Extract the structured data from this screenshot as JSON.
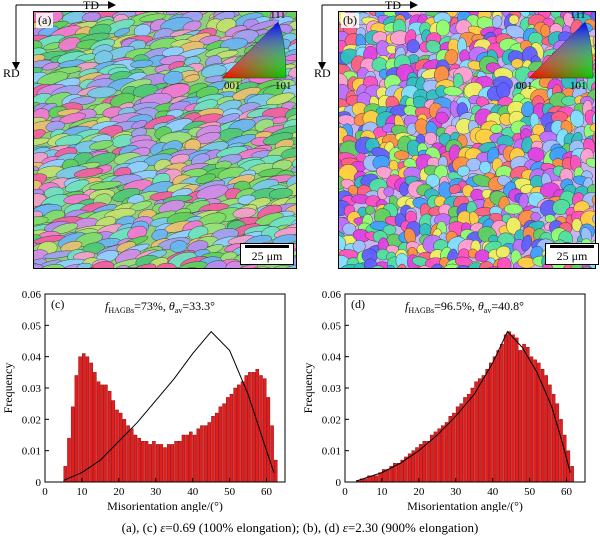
{
  "maps": [
    {
      "id": "a",
      "label": "(a)",
      "td": "TD",
      "rd": "RD",
      "scale": "25 μm",
      "ipf": {
        "top": "111",
        "left": "001",
        "right": "101"
      }
    },
    {
      "id": "b",
      "label": "(b)",
      "td": "TD",
      "rd": "RD",
      "scale": "25 μm",
      "ipf": {
        "top": "111",
        "left": "001",
        "right": "101"
      }
    }
  ],
  "chart_data": [
    {
      "type": "bar",
      "label": "(c)",
      "annotation": "f_HAGBs=73%, θav=33.3°",
      "annotation_parts": {
        "f": "f",
        "sub": "HAGBs",
        "mid": "=73%, ",
        "theta": "θ",
        "sub2": "av",
        "end": "=33.3°"
      },
      "xlabel": "Misorientation angle/(°)",
      "ylabel": "Frequency",
      "xlim": [
        0,
        65
      ],
      "ylim": [
        0,
        0.06
      ],
      "xticks": [
        "0",
        "10",
        "20",
        "30",
        "40",
        "50",
        "60"
      ],
      "yticks": [
        "0",
        "0.01",
        "0.02",
        "0.03",
        "0.04",
        "0.05",
        "0.06"
      ],
      "bar_color": "#e41e1e",
      "bin_start": 5,
      "bin_width": 1,
      "values": [
        0.005,
        0.014,
        0.024,
        0.034,
        0.04,
        0.041,
        0.04,
        0.038,
        0.035,
        0.032,
        0.031,
        0.031,
        0.029,
        0.026,
        0.023,
        0.022,
        0.02,
        0.018,
        0.017,
        0.015,
        0.014,
        0.013,
        0.013,
        0.012,
        0.013,
        0.012,
        0.012,
        0.011,
        0.012,
        0.012,
        0.013,
        0.013,
        0.015,
        0.015,
        0.016,
        0.015,
        0.017,
        0.018,
        0.018,
        0.019,
        0.021,
        0.022,
        0.024,
        0.025,
        0.027,
        0.028,
        0.03,
        0.031,
        0.032,
        0.034,
        0.035,
        0.035,
        0.036,
        0.034,
        0.033,
        0.027,
        0.018,
        0.007
      ],
      "curve": {
        "x": [
          5,
          10,
          15,
          20,
          25,
          30,
          35,
          40,
          45,
          50,
          55,
          60,
          62
        ],
        "y": [
          0.0005,
          0.003,
          0.007,
          0.013,
          0.019,
          0.026,
          0.033,
          0.041,
          0.048,
          0.042,
          0.028,
          0.01,
          0.003
        ]
      }
    },
    {
      "type": "bar",
      "label": "(d)",
      "annotation": "f_HAGBs=96.5%, θav=40.8°",
      "annotation_parts": {
        "f": "f",
        "sub": "HAGBs",
        "mid": "=96.5%, ",
        "theta": "θ",
        "sub2": "av",
        "end": "=40.8°"
      },
      "xlabel": "Misorientation angle/(°)",
      "ylabel": "Frequency",
      "xlim": [
        0,
        65
      ],
      "ylim": [
        0,
        0.06
      ],
      "xticks": [
        "0",
        "10",
        "20",
        "30",
        "40",
        "50",
        "60"
      ],
      "yticks": [
        "0",
        "0.01",
        "0.02",
        "0.03",
        "0.04",
        "0.05",
        "0.06"
      ],
      "bar_color": "#e41e1e",
      "bin_start": 3,
      "bin_width": 1,
      "values": [
        0.0005,
        0.001,
        0.001,
        0.002,
        0.002,
        0.002,
        0.003,
        0.004,
        0.004,
        0.005,
        0.006,
        0.006,
        0.007,
        0.008,
        0.009,
        0.01,
        0.011,
        0.012,
        0.013,
        0.013,
        0.015,
        0.016,
        0.017,
        0.018,
        0.019,
        0.021,
        0.022,
        0.024,
        0.025,
        0.027,
        0.028,
        0.03,
        0.032,
        0.033,
        0.034,
        0.036,
        0.038,
        0.04,
        0.042,
        0.044,
        0.047,
        0.048,
        0.047,
        0.046,
        0.042,
        0.044,
        0.043,
        0.04,
        0.039,
        0.038,
        0.036,
        0.034,
        0.031,
        0.028,
        0.025,
        0.02,
        0.015,
        0.01,
        0.005
      ],
      "curve": {
        "x": [
          3,
          10,
          15,
          20,
          25,
          30,
          35,
          40,
          44,
          48,
          52,
          56,
          59,
          61
        ],
        "y": [
          0.0003,
          0.003,
          0.006,
          0.01,
          0.015,
          0.021,
          0.028,
          0.038,
          0.048,
          0.043,
          0.035,
          0.024,
          0.012,
          0.003
        ]
      }
    }
  ],
  "caption": "(a), (c) ε=0.69 (100% elongation); (b), (d) ε=2.30 (900% elongation)",
  "caption_parts": {
    "a": "(a), (c) ",
    "eps1": "ε",
    "b": "=0.69 (100% elongation); (b), (d) ",
    "eps2": "ε",
    "c": "=2.30 (900% elongation)"
  }
}
